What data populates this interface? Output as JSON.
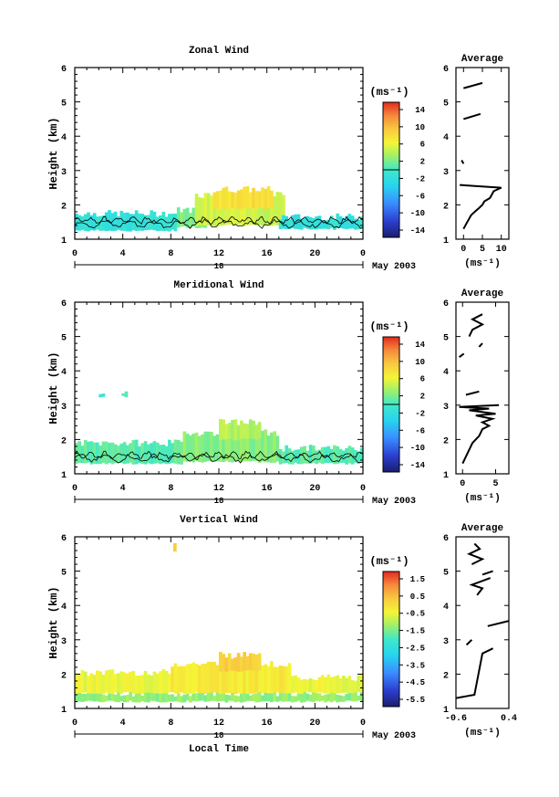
{
  "figure": {
    "x_label": "Local Time",
    "date_label": "May 2003",
    "day_label": "18",
    "unit_label": "(ms⁻¹)",
    "avg_title": "Average"
  },
  "chart_data": [
    {
      "type": "heatmap",
      "title": "Zonal Wind",
      "ylabel": "Height (km)",
      "xlabel": "",
      "x_ticks": [
        "0",
        "4",
        "8",
        "12",
        "16",
        "20",
        "0"
      ],
      "xlim": [
        0,
        24
      ],
      "y_ticks": [
        "1",
        "2",
        "3",
        "4",
        "5",
        "6"
      ],
      "ylim": [
        1,
        6
      ],
      "colorbar": {
        "unit": "(ms⁻¹)",
        "ticks": [
          "14",
          "10",
          "6",
          "2",
          "-2",
          "-6",
          "-10",
          "-14"
        ],
        "range": [
          -16,
          16
        ]
      },
      "regions": [
        {
          "t0": 0,
          "t1": 8.5,
          "z0": 1.25,
          "z1": 1.75,
          "value": -1.5
        },
        {
          "t0": 8.5,
          "t1": 11,
          "z0": 1.35,
          "z1": 1.85,
          "value": 2.5
        },
        {
          "t0": 10,
          "t1": 17.5,
          "z0": 1.4,
          "z1": 2.3,
          "value": 5
        },
        {
          "t0": 11.5,
          "t1": 16.5,
          "z0": 1.9,
          "z1": 2.45,
          "value": 8
        },
        {
          "t0": 17,
          "t1": 24,
          "z0": 1.3,
          "z1": 1.65,
          "value": -1.5
        }
      ],
      "average": {
        "title": "Average",
        "xlabel": "(ms⁻¹)",
        "x_ticks": [
          "0",
          "5",
          "10"
        ],
        "xlim": [
          -2,
          12
        ],
        "y_ticks": [
          "1",
          "2",
          "3",
          "4",
          "5",
          "6"
        ],
        "ylim": [
          1,
          6
        ],
        "segments": [
          [
            [
              0,
              1.3
            ],
            [
              1,
              1.5
            ],
            [
              2,
              1.7
            ],
            [
              3,
              1.8
            ],
            [
              4,
              1.9
            ],
            [
              5,
              2.0
            ],
            [
              5.5,
              2.1
            ],
            [
              7,
              2.2
            ],
            [
              8,
              2.4
            ],
            [
              10,
              2.5
            ],
            [
              3,
              2.55
            ],
            [
              -1,
              2.58
            ]
          ],
          [
            [
              -0.5,
              3.3
            ],
            [
              0,
              3.2
            ]
          ],
          [
            [
              0,
              4.5
            ],
            [
              4.5,
              4.65
            ]
          ],
          [
            [
              0,
              5.4
            ],
            [
              5,
              5.55
            ]
          ]
        ]
      }
    },
    {
      "type": "heatmap",
      "title": "Meridional Wind",
      "ylabel": "Height (km)",
      "xlabel": "",
      "x_ticks": [
        "0",
        "4",
        "8",
        "12",
        "16",
        "20",
        "0"
      ],
      "xlim": [
        0,
        24
      ],
      "y_ticks": [
        "1",
        "2",
        "3",
        "4",
        "5",
        "6"
      ],
      "ylim": [
        1,
        6
      ],
      "colorbar": {
        "unit": "(ms⁻¹)",
        "ticks": [
          "14",
          "10",
          "6",
          "2",
          "-2",
          "-6",
          "-10",
          "-14"
        ],
        "range": [
          -16,
          16
        ]
      },
      "regions": [
        {
          "t0": 0,
          "t1": 9,
          "z0": 1.3,
          "z1": 1.9,
          "value": 1
        },
        {
          "t0": 9,
          "t1": 17,
          "z0": 1.35,
          "z1": 2.2,
          "value": 2.5
        },
        {
          "t0": 12,
          "t1": 15.5,
          "z0": 2.0,
          "z1": 2.5,
          "value": 4
        },
        {
          "t0": 17,
          "t1": 24,
          "z0": 1.3,
          "z1": 1.75,
          "value": 1
        },
        {
          "t0": 2,
          "t1": 2.3,
          "z0": 3.25,
          "z1": 3.4,
          "value": 0
        },
        {
          "t0": 3.9,
          "t1": 4.2,
          "z0": 3.25,
          "z1": 3.4,
          "value": 0
        }
      ],
      "average": {
        "title": "Average",
        "xlabel": "(ms⁻¹)",
        "x_ticks": [
          "0",
          "5"
        ],
        "xlim": [
          -1,
          7
        ],
        "y_ticks": [
          "1",
          "2",
          "3",
          "4",
          "5",
          "6"
        ],
        "ylim": [
          1,
          6
        ],
        "segments": [
          [
            [
              0,
              1.3
            ],
            [
              0.5,
              1.5
            ],
            [
              1,
              1.7
            ],
            [
              1.5,
              1.9
            ],
            [
              2.5,
              2.1
            ],
            [
              3,
              2.3
            ],
            [
              4,
              2.4
            ],
            [
              3,
              2.5
            ],
            [
              4.5,
              2.6
            ],
            [
              2,
              2.7
            ],
            [
              5,
              2.75
            ],
            [
              1,
              2.85
            ],
            [
              4,
              2.9
            ],
            [
              -0.5,
              2.95
            ],
            [
              5.5,
              3.0
            ]
          ],
          [
            [
              0.5,
              3.3
            ],
            [
              2.5,
              3.4
            ]
          ],
          [
            [
              -0.5,
              4.4
            ],
            [
              0.2,
              4.5
            ]
          ],
          [
            [
              2.5,
              4.7
            ],
            [
              3,
              4.8
            ]
          ],
          [
            [
              1,
              5.0
            ],
            [
              1.5,
              5.2
            ],
            [
              3,
              5.35
            ],
            [
              1.5,
              5.5
            ],
            [
              3,
              5.65
            ]
          ]
        ]
      }
    },
    {
      "type": "heatmap",
      "title": "Vertical Wind",
      "ylabel": "Height (km)",
      "xlabel": "Local Time",
      "x_ticks": [
        "0",
        "4",
        "8",
        "12",
        "16",
        "20",
        "0"
      ],
      "xlim": [
        0,
        24
      ],
      "y_ticks": [
        "1",
        "2",
        "3",
        "4",
        "5",
        "6"
      ],
      "ylim": [
        1,
        6
      ],
      "colorbar": {
        "unit": "(ms⁻¹)",
        "ticks": [
          "1.5",
          "0.5",
          "-0.5",
          "-1.5",
          "-2.5",
          "-3.5",
          "-4.5",
          "-5.5"
        ],
        "range": [
          -6,
          2
        ]
      },
      "regions": [
        {
          "t0": 0,
          "t1": 24,
          "z0": 1.2,
          "z1": 1.45,
          "value": -1.3
        },
        {
          "t0": 0,
          "t1": 8,
          "z0": 1.45,
          "z1": 2.05,
          "value": -0.5
        },
        {
          "t0": 8,
          "t1": 18,
          "z0": 1.45,
          "z1": 2.3,
          "value": -0.2
        },
        {
          "t0": 12,
          "t1": 15.5,
          "z0": 2.1,
          "z1": 2.55,
          "value": 0.3
        },
        {
          "t0": 18,
          "t1": 24,
          "z0": 1.45,
          "z1": 1.9,
          "value": -0.5
        },
        {
          "t0": 8.2,
          "t1": 8.4,
          "z0": 5.55,
          "z1": 5.75,
          "value": 0.3
        }
      ],
      "average": {
        "title": "Average",
        "xlabel": "(ms⁻¹)",
        "x_ticks": [
          "-0.6",
          "0.4"
        ],
        "xlim": [
          -0.6,
          0.4
        ],
        "y_ticks": [
          "1",
          "2",
          "3",
          "4",
          "5",
          "6"
        ],
        "ylim": [
          1,
          6
        ],
        "segments": [
          [
            [
              -0.6,
              1.3
            ],
            [
              -0.25,
              1.4
            ],
            [
              -0.2,
              1.8
            ],
            [
              -0.15,
              2.2
            ],
            [
              -0.1,
              2.6
            ],
            [
              0.1,
              2.75
            ]
          ],
          [
            [
              -0.4,
              2.85
            ],
            [
              -0.3,
              3.0
            ]
          ],
          [
            [
              0.0,
              3.4
            ],
            [
              0.4,
              3.55
            ]
          ],
          [
            [
              -0.2,
              4.3
            ],
            [
              -0.1,
              4.5
            ],
            [
              -0.3,
              4.6
            ],
            [
              0.05,
              4.8
            ]
          ],
          [
            [
              -0.1,
              4.9
            ],
            [
              0.1,
              5.0
            ]
          ],
          [
            [
              -0.3,
              5.2
            ],
            [
              -0.1,
              5.35
            ],
            [
              -0.35,
              5.5
            ],
            [
              -0.15,
              5.65
            ],
            [
              -0.25,
              5.8
            ]
          ]
        ]
      }
    }
  ]
}
